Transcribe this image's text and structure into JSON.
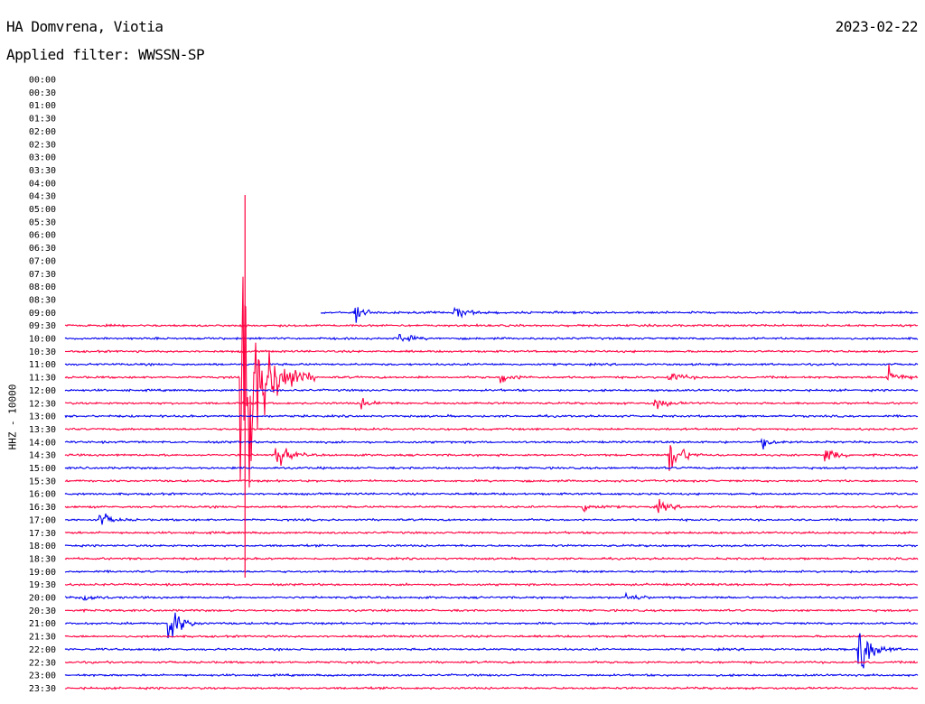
{
  "header": {
    "station": "HA Domvrena, Viotia",
    "date": "2023-02-22",
    "filter": "Applied filter: WWSSN-SP",
    "channel": "HHZ - 10000"
  },
  "chart_data": {
    "type": "line",
    "title": "HA Domvrena, Viotia",
    "ylabel": "HHZ - 10000",
    "tick_labels": [
      "00:00",
      "00:30",
      "01:00",
      "01:30",
      "02:00",
      "02:30",
      "03:00",
      "03:30",
      "04:00",
      "04:30",
      "05:00",
      "05:30",
      "06:00",
      "06:30",
      "07:00",
      "07:30",
      "08:00",
      "08:30",
      "09:00",
      "09:30",
      "10:00",
      "10:30",
      "11:00",
      "11:30",
      "12:00",
      "12:30",
      "13:00",
      "13:30",
      "14:00",
      "14:30",
      "15:00",
      "15:30",
      "16:00",
      "16:30",
      "17:00",
      "17:30",
      "18:00",
      "18:30",
      "19:00",
      "19:30",
      "20:00",
      "20:30",
      "21:00",
      "21:30",
      "22:00",
      "22:30",
      "23:00",
      "23:30"
    ],
    "colors": [
      "#0000ee",
      "#ff0040"
    ],
    "data_start_minute": 9.0,
    "events": [
      {
        "row": "11:30",
        "minute": 6.3,
        "amplitude": 120,
        "type": "large"
      },
      {
        "row": "09:00",
        "minute": 9.1,
        "amplitude": 14,
        "type": "onset"
      },
      {
        "row": "09:00",
        "minute": 10.2,
        "amplitude": 9,
        "type": "small"
      },
      {
        "row": "09:00",
        "minute": 13.8,
        "amplitude": 6,
        "type": "small"
      },
      {
        "row": "10:00",
        "minute": 11.8,
        "amplitude": 5,
        "type": "small"
      },
      {
        "row": "11:30",
        "minute": 7.5,
        "amplitude": 11,
        "type": "small"
      },
      {
        "row": "11:30",
        "minute": 15.4,
        "amplitude": 5,
        "type": "small"
      },
      {
        "row": "11:30",
        "minute": 21.3,
        "amplitude": 6,
        "type": "small"
      },
      {
        "row": "11:30",
        "minute": 29.0,
        "amplitude": 9,
        "type": "small"
      },
      {
        "row": "12:30",
        "minute": 10.5,
        "amplitude": 4,
        "type": "small"
      },
      {
        "row": "12:30",
        "minute": 20.8,
        "amplitude": 5,
        "type": "small"
      },
      {
        "row": "14:00",
        "minute": 24.6,
        "amplitude": 5,
        "type": "small"
      },
      {
        "row": "14:30",
        "minute": 7.5,
        "amplitude": 12,
        "type": "small"
      },
      {
        "row": "14:30",
        "minute": 21.3,
        "amplitude": 22,
        "type": "small"
      },
      {
        "row": "14:30",
        "minute": 26.8,
        "amplitude": 8,
        "type": "small"
      },
      {
        "row": "16:30",
        "minute": 18.3,
        "amplitude": 4,
        "type": "small"
      },
      {
        "row": "16:30",
        "minute": 20.9,
        "amplitude": 5,
        "type": "small"
      },
      {
        "row": "17:00",
        "minute": 1.3,
        "amplitude": 6,
        "type": "small"
      },
      {
        "row": "20:00",
        "minute": 0.7,
        "amplitude": 4,
        "type": "small"
      },
      {
        "row": "20:00",
        "minute": 19.8,
        "amplitude": 4,
        "type": "small"
      },
      {
        "row": "21:00",
        "minute": 3.7,
        "amplitude": 20,
        "type": "small"
      },
      {
        "row": "22:00",
        "minute": 28.0,
        "amplitude": 30,
        "type": "small"
      }
    ]
  }
}
